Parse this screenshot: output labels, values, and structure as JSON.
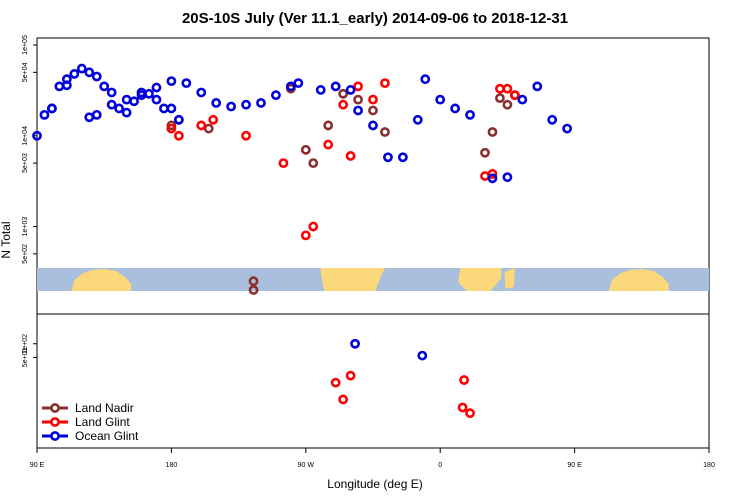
{
  "chart_data": {
    "type": "scatter",
    "title": "20S-10S July (Ver 11.1_early)   2014-09-06 to 2018-12-31",
    "xlabel": "Longitude (deg E)",
    "ylabel": "N Total",
    "x_ticks": [
      "90 E",
      "180",
      "90 W",
      "0",
      "90 E",
      "180"
    ],
    "top_panel": {
      "scale": "log",
      "ylim": [
        200,
        100000
      ],
      "y_ticks": [
        "1e+05",
        "5e+04",
        "1e+04",
        "5e+03",
        "1e+03",
        "5e+02"
      ]
    },
    "bottom_panel": {
      "scale": "log",
      "ylim": [
        0.7,
        300
      ],
      "y_ticks": [
        "1e+02",
        "5e+01"
      ]
    },
    "land_mask": {
      "sea_color": "#a9bfdd",
      "land_color": "#fbd97a"
    },
    "series": [
      {
        "name": "Land Nadir",
        "color": "#8b2e2e",
        "top": [
          [
            50,
            28000
          ],
          [
            45,
            22000
          ],
          [
            40,
            26000
          ],
          [
            35,
            11000
          ],
          [
            30,
            6500
          ],
          [
            -37,
            11000
          ],
          [
            -45,
            19000
          ],
          [
            -55,
            25000
          ],
          [
            -65,
            29000
          ],
          [
            -75,
            13000
          ],
          [
            -85,
            5000
          ],
          [
            -90,
            7000
          ],
          [
            -100,
            33000
          ],
          [
            -125,
            200
          ],
          [
            -125,
            250
          ],
          [
            -155,
            12000
          ],
          [
            -175,
            15000
          ],
          [
            -180,
            13000
          ]
        ],
        "bottom": []
      },
      {
        "name": "Land Glint",
        "color": "#ff0000",
        "top": [
          [
            50,
            28000
          ],
          [
            45,
            33000
          ],
          [
            40,
            33000
          ],
          [
            35,
            3800
          ],
          [
            30,
            3600
          ],
          [
            -37,
            38000
          ],
          [
            -45,
            25000
          ],
          [
            -55,
            35000
          ],
          [
            -60,
            6000
          ],
          [
            -65,
            22000
          ],
          [
            -75,
            8000
          ],
          [
            -85,
            1000
          ],
          [
            -90,
            800
          ],
          [
            -105,
            5000
          ],
          [
            -130,
            10000
          ],
          [
            -152,
            15000
          ],
          [
            -160,
            13000
          ],
          [
            -175,
            10000
          ],
          [
            -180,
            12000
          ]
        ],
        "bottom": [
          [
            15,
            4
          ],
          [
            16,
            16
          ],
          [
            20,
            3
          ],
          [
            -60,
            20
          ],
          [
            -65,
            6
          ],
          [
            -70,
            14
          ]
        ]
      },
      {
        "name": "Ocean Glint",
        "color": "#0000dd",
        "top": [
          [
            90,
            10000
          ],
          [
            100,
            20000
          ],
          [
            110,
            36000
          ],
          [
            125,
            16000
          ],
          [
            130,
            17000
          ],
          [
            140,
            22000
          ],
          [
            150,
            25000
          ],
          [
            160,
            30000
          ],
          [
            170,
            34000
          ],
          [
            180,
            40000
          ],
          [
            -170,
            38000
          ],
          [
            -160,
            30000
          ],
          [
            -150,
            23000
          ],
          [
            -140,
            21000
          ],
          [
            -130,
            22000
          ],
          [
            -120,
            23000
          ],
          [
            -110,
            28000
          ],
          [
            -100,
            35000
          ],
          [
            -95,
            38000
          ],
          [
            -80,
            32000
          ],
          [
            -70,
            35000
          ],
          [
            -60,
            32000
          ],
          [
            -55,
            19000
          ],
          [
            -45,
            13000
          ],
          [
            -35,
            5800
          ],
          [
            -25,
            5800
          ],
          [
            -15,
            15000
          ],
          [
            -10,
            42000
          ],
          [
            0,
            25000
          ],
          [
            10,
            20000
          ],
          [
            20,
            17000
          ],
          [
            35,
            3400
          ],
          [
            45,
            3500
          ],
          [
            55,
            25000
          ],
          [
            65,
            35000
          ],
          [
            75,
            15000
          ],
          [
            85,
            12000
          ],
          [
            95,
            17000
          ],
          [
            100,
            20000
          ],
          [
            105,
            35000
          ],
          [
            110,
            42000
          ],
          [
            115,
            48000
          ],
          [
            120,
            55000
          ],
          [
            125,
            50000
          ],
          [
            130,
            45000
          ],
          [
            135,
            35000
          ],
          [
            140,
            30000
          ],
          [
            145,
            20000
          ],
          [
            150,
            18000
          ],
          [
            155,
            24000
          ],
          [
            160,
            28000
          ],
          [
            165,
            29000
          ],
          [
            170,
            25000
          ],
          [
            175,
            20000
          ],
          [
            180,
            20000
          ],
          [
            -175,
            15000
          ]
        ],
        "bottom": [
          [
            -57,
            100
          ],
          [
            -12,
            55
          ]
        ]
      }
    ]
  }
}
